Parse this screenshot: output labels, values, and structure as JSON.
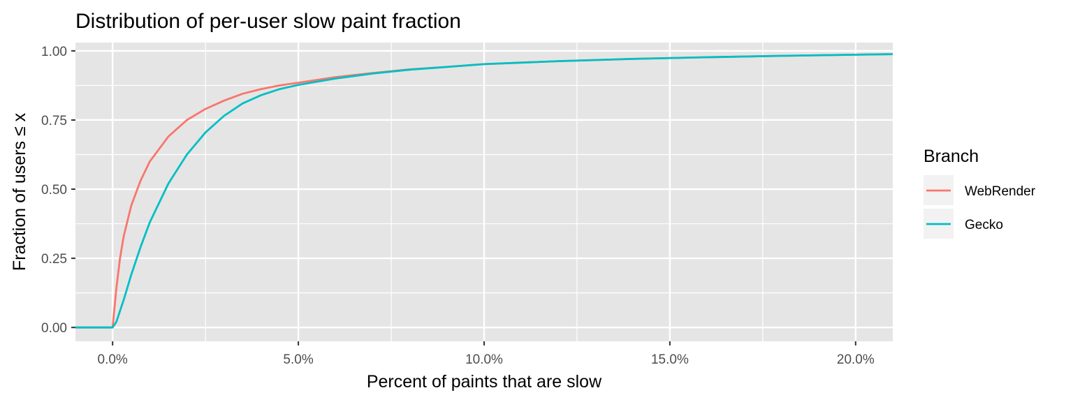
{
  "chart_data": {
    "type": "line",
    "title": "Distribution of per-user slow paint fraction",
    "xlabel": "Percent of paints that are slow",
    "ylabel": "Fraction of users ≤ x",
    "xlim": [
      -1.0,
      21.0
    ],
    "ylim": [
      -0.05,
      1.03
    ],
    "x_ticks": [
      0,
      5,
      10,
      15,
      20
    ],
    "x_tick_labels": [
      "0.0%",
      "5.0%",
      "10.0%",
      "15.0%",
      "20.0%"
    ],
    "y_ticks": [
      0,
      0.25,
      0.5,
      0.75,
      1.0
    ],
    "y_tick_labels": [
      "0.00",
      "0.25",
      "0.50",
      "0.75",
      "1.00"
    ],
    "grid": true,
    "legend": {
      "title": "Branch",
      "placement": "right"
    },
    "series": [
      {
        "name": "WebRender",
        "color": "#f8766d",
        "points": [
          [
            -1.0,
            0.0
          ],
          [
            0.0,
            0.0
          ],
          [
            0.1,
            0.14
          ],
          [
            0.2,
            0.25
          ],
          [
            0.3,
            0.33
          ],
          [
            0.5,
            0.44
          ],
          [
            0.75,
            0.53
          ],
          [
            1.0,
            0.6
          ],
          [
            1.5,
            0.69
          ],
          [
            2.0,
            0.75
          ],
          [
            2.5,
            0.79
          ],
          [
            3.0,
            0.82
          ],
          [
            3.5,
            0.845
          ],
          [
            4.0,
            0.862
          ],
          [
            4.5,
            0.875
          ],
          [
            5.0,
            0.885
          ],
          [
            6.0,
            0.905
          ],
          [
            7.0,
            0.92
          ],
          [
            8.0,
            0.933
          ],
          [
            9.0,
            0.942
          ],
          [
            10.0,
            0.952
          ],
          [
            12.0,
            0.963
          ],
          [
            14.0,
            0.971
          ],
          [
            16.0,
            0.977
          ],
          [
            18.0,
            0.982
          ],
          [
            20.0,
            0.986
          ],
          [
            21.0,
            0.988
          ]
        ]
      },
      {
        "name": "Gecko",
        "color": "#00bfc4",
        "points": [
          [
            -1.0,
            0.0
          ],
          [
            0.0,
            0.0
          ],
          [
            0.1,
            0.02
          ],
          [
            0.2,
            0.06
          ],
          [
            0.3,
            0.1
          ],
          [
            0.5,
            0.19
          ],
          [
            0.75,
            0.29
          ],
          [
            1.0,
            0.38
          ],
          [
            1.5,
            0.52
          ],
          [
            2.0,
            0.625
          ],
          [
            2.5,
            0.705
          ],
          [
            3.0,
            0.765
          ],
          [
            3.5,
            0.81
          ],
          [
            4.0,
            0.84
          ],
          [
            4.5,
            0.862
          ],
          [
            5.0,
            0.877
          ],
          [
            6.0,
            0.9
          ],
          [
            7.0,
            0.918
          ],
          [
            8.0,
            0.932
          ],
          [
            9.0,
            0.942
          ],
          [
            10.0,
            0.952
          ],
          [
            12.0,
            0.963
          ],
          [
            14.0,
            0.971
          ],
          [
            16.0,
            0.977
          ],
          [
            18.0,
            0.982
          ],
          [
            20.0,
            0.986
          ],
          [
            21.0,
            0.988
          ]
        ]
      }
    ]
  }
}
